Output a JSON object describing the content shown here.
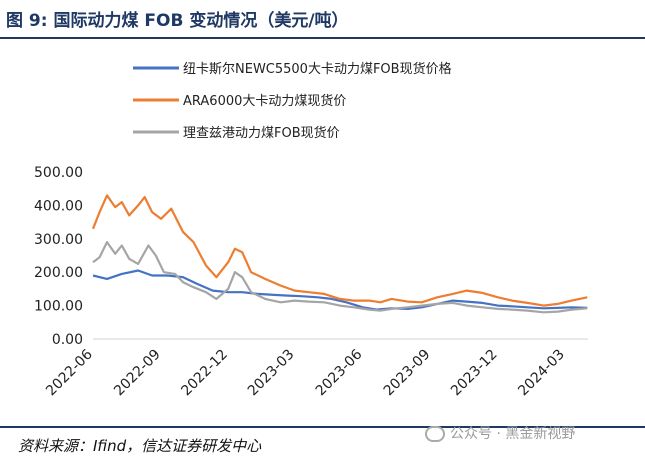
{
  "title": "图 9:  国际动力煤 FOB 变动情况（美元/吨）",
  "source": "资料来源：Ifind，信达证券研发中心",
  "watermark": "公众号 · 黑金新视野",
  "colors": {
    "blue": "#4472c4",
    "orange": "#ed7d31",
    "gray": "#a5a5a5",
    "navy": "#1f3864"
  },
  "chart_data": {
    "type": "line",
    "title": "",
    "ylim": [
      0,
      500
    ],
    "yticks": [
      "0.00",
      "100.00",
      "200.00",
      "300.00",
      "400.00",
      "500.00"
    ],
    "xlim": [
      "2022-06-01",
      "2024-04-01"
    ],
    "xticks": [
      "2022-06",
      "2022-09",
      "2022-12",
      "2023-03",
      "2023-06",
      "2023-09",
      "2023-12",
      "2024-03"
    ],
    "grid": false,
    "legend_position": "top-center",
    "series": [
      {
        "name": "纽卡斯尔NEWC5500大卡动力煤FOB现货价格",
        "color": "#4472c4",
        "points": [
          [
            "2022-06-01",
            190
          ],
          [
            "2022-06-20",
            180
          ],
          [
            "2022-07-10",
            195
          ],
          [
            "2022-08-01",
            205
          ],
          [
            "2022-08-20",
            190
          ],
          [
            "2022-09-10",
            190
          ],
          [
            "2022-10-01",
            185
          ],
          [
            "2022-10-20",
            165
          ],
          [
            "2022-11-10",
            145
          ],
          [
            "2022-12-01",
            140
          ],
          [
            "2022-12-20",
            140
          ],
          [
            "2023-01-10",
            135
          ],
          [
            "2023-02-01",
            132
          ],
          [
            "2023-02-20",
            130
          ],
          [
            "2023-03-10",
            128
          ],
          [
            "2023-04-01",
            125
          ],
          [
            "2023-04-20",
            120
          ],
          [
            "2023-05-10",
            110
          ],
          [
            "2023-06-01",
            95
          ],
          [
            "2023-06-20",
            88
          ],
          [
            "2023-07-10",
            92
          ],
          [
            "2023-08-01",
            90
          ],
          [
            "2023-08-20",
            95
          ],
          [
            "2023-09-10",
            105
          ],
          [
            "2023-10-01",
            115
          ],
          [
            "2023-10-20",
            112
          ],
          [
            "2023-11-10",
            108
          ],
          [
            "2023-12-01",
            100
          ],
          [
            "2023-12-20",
            98
          ],
          [
            "2024-01-10",
            95
          ],
          [
            "2024-02-01",
            92
          ],
          [
            "2024-02-20",
            93
          ],
          [
            "2024-03-10",
            95
          ],
          [
            "2024-03-31",
            93
          ]
        ]
      },
      {
        "name": "ARA6000大卡动力煤现货价",
        "color": "#ed7d31",
        "points": [
          [
            "2022-06-01",
            330
          ],
          [
            "2022-06-10",
            380
          ],
          [
            "2022-06-20",
            430
          ],
          [
            "2022-07-01",
            395
          ],
          [
            "2022-07-10",
            410
          ],
          [
            "2022-07-20",
            370
          ],
          [
            "2022-08-01",
            400
          ],
          [
            "2022-08-10",
            425
          ],
          [
            "2022-08-20",
            380
          ],
          [
            "2022-09-01",
            360
          ],
          [
            "2022-09-15",
            390
          ],
          [
            "2022-10-01",
            320
          ],
          [
            "2022-10-15",
            290
          ],
          [
            "2022-11-01",
            220
          ],
          [
            "2022-11-15",
            185
          ],
          [
            "2022-12-01",
            230
          ],
          [
            "2022-12-10",
            270
          ],
          [
            "2022-12-20",
            260
          ],
          [
            "2023-01-01",
            200
          ],
          [
            "2023-01-20",
            180
          ],
          [
            "2023-02-10",
            160
          ],
          [
            "2023-03-01",
            145
          ],
          [
            "2023-03-20",
            140
          ],
          [
            "2023-04-10",
            135
          ],
          [
            "2023-05-01",
            120
          ],
          [
            "2023-05-20",
            115
          ],
          [
            "2023-06-10",
            115
          ],
          [
            "2023-06-25",
            110
          ],
          [
            "2023-07-10",
            120
          ],
          [
            "2023-08-01",
            112
          ],
          [
            "2023-08-20",
            110
          ],
          [
            "2023-09-10",
            125
          ],
          [
            "2023-10-01",
            135
          ],
          [
            "2023-10-20",
            145
          ],
          [
            "2023-11-10",
            138
          ],
          [
            "2023-12-01",
            125
          ],
          [
            "2023-12-20",
            115
          ],
          [
            "2024-01-10",
            108
          ],
          [
            "2024-02-01",
            100
          ],
          [
            "2024-02-20",
            105
          ],
          [
            "2024-03-10",
            115
          ],
          [
            "2024-03-31",
            125
          ]
        ]
      },
      {
        "name": "理查兹港动力煤FOB现货价",
        "color": "#a5a5a5",
        "points": [
          [
            "2022-06-01",
            230
          ],
          [
            "2022-06-10",
            245
          ],
          [
            "2022-06-20",
            290
          ],
          [
            "2022-07-01",
            255
          ],
          [
            "2022-07-10",
            280
          ],
          [
            "2022-07-20",
            240
          ],
          [
            "2022-08-01",
            225
          ],
          [
            "2022-08-15",
            280
          ],
          [
            "2022-08-25",
            250
          ],
          [
            "2022-09-05",
            200
          ],
          [
            "2022-09-20",
            195
          ],
          [
            "2022-10-01",
            170
          ],
          [
            "2022-10-15",
            155
          ],
          [
            "2022-11-01",
            140
          ],
          [
            "2022-11-15",
            120
          ],
          [
            "2022-12-01",
            150
          ],
          [
            "2022-12-10",
            200
          ],
          [
            "2022-12-20",
            185
          ],
          [
            "2023-01-01",
            140
          ],
          [
            "2023-01-20",
            120
          ],
          [
            "2023-02-10",
            110
          ],
          [
            "2023-03-01",
            115
          ],
          [
            "2023-03-20",
            112
          ],
          [
            "2023-04-10",
            110
          ],
          [
            "2023-05-01",
            100
          ],
          [
            "2023-05-20",
            95
          ],
          [
            "2023-06-10",
            88
          ],
          [
            "2023-06-25",
            85
          ],
          [
            "2023-07-10",
            90
          ],
          [
            "2023-08-01",
            95
          ],
          [
            "2023-08-20",
            100
          ],
          [
            "2023-09-10",
            105
          ],
          [
            "2023-10-01",
            108
          ],
          [
            "2023-10-20",
            100
          ],
          [
            "2023-11-10",
            95
          ],
          [
            "2023-12-01",
            90
          ],
          [
            "2023-12-20",
            88
          ],
          [
            "2024-01-10",
            85
          ],
          [
            "2024-02-01",
            80
          ],
          [
            "2024-02-20",
            82
          ],
          [
            "2024-03-10",
            88
          ],
          [
            "2024-03-31",
            92
          ]
        ]
      }
    ]
  }
}
